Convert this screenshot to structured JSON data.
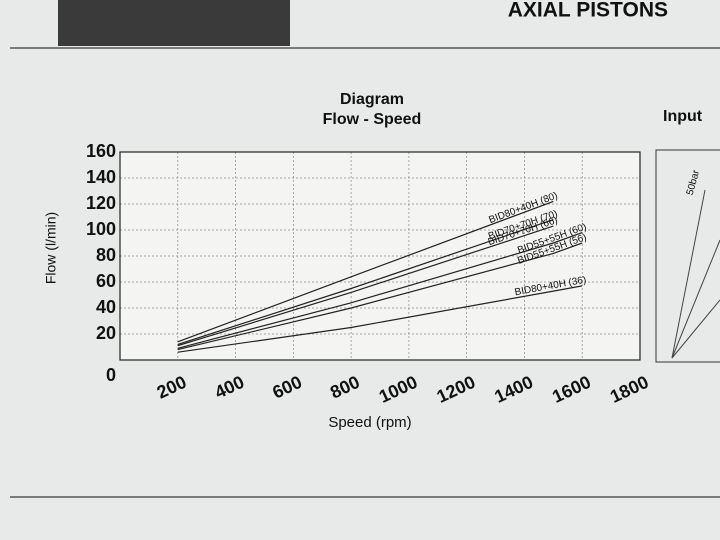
{
  "header": {
    "title": "AXIAL PISTONS"
  },
  "side_panel": {
    "title": "Input",
    "label": "50bar"
  },
  "chart_data": {
    "type": "line",
    "title": "Diagram",
    "subtitle": "Flow - Speed",
    "x_label": "Speed (rpm)",
    "y_label": "Flow (l/min)",
    "x": [
      200,
      800,
      1500,
      1600
    ],
    "series": [
      {
        "name": "BID80+40H (80)",
        "color": "#222222",
        "values": [
          14,
          64,
          122,
          null
        ]
      },
      {
        "name": "BID70+70H (70)",
        "color": "#222222",
        "values": [
          12,
          55,
          108,
          null
        ]
      },
      {
        "name": "BID70+70H (66)",
        "color": "#222222",
        "values": [
          11,
          52,
          103,
          null
        ]
      },
      {
        "name": "BID55+55H (60)",
        "color": "#222222",
        "values": [
          9,
          44,
          90,
          98
        ]
      },
      {
        "name": "BID55+55H (56)",
        "color": "#222222",
        "values": [
          8,
          40,
          82,
          90
        ]
      },
      {
        "name": "BID80+40H (36)",
        "color": "#222222",
        "values": [
          6,
          25,
          53,
          57
        ]
      }
    ],
    "xlim": [
      0,
      1800
    ],
    "xticks": [
      200,
      400,
      600,
      800,
      1000,
      1200,
      1400,
      1600,
      1800
    ],
    "ylim": [
      0,
      160
    ],
    "yticks": [
      0,
      20,
      40,
      60,
      80,
      100,
      120,
      140,
      160
    ],
    "grid": true
  }
}
